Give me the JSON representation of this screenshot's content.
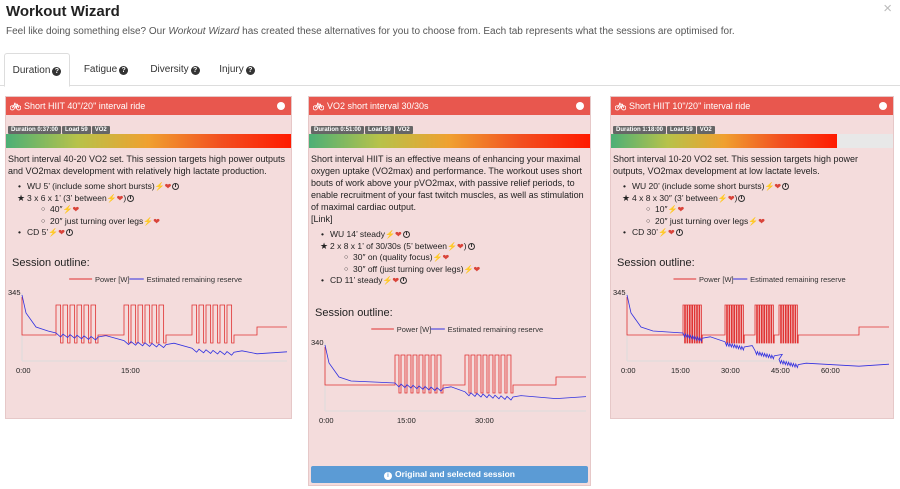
{
  "modal": {
    "title": "Workout Wizard",
    "close_label": "×",
    "subtitle_pre": "Feel like doing something else? Our ",
    "subtitle_em": "Workout Wizard",
    "subtitle_post": " has created these alternatives for you to choose from. Each tab represents what the sessions are optimised for."
  },
  "tabs": [
    {
      "label": "Duration"
    },
    {
      "label": "Fatigue"
    },
    {
      "label": "Diversity"
    },
    {
      "label": "Injury"
    }
  ],
  "cards": [
    {
      "title": "Short HIIT 40\"/20\" interval ride",
      "badges": [
        "Duration 0:37:00",
        "Load 59",
        "VO2"
      ],
      "bar_fill": 1.0,
      "desc": "Short interval 40-20 VO2 set. This session targets high power outputs and VO2max development with relatively high lactate production.",
      "steps": [
        {
          "text": "WU 5’ (include some short bursts)",
          "star": false,
          "icons": true
        },
        {
          "text": "3 x 6 x 1’ (3’ between",
          "star": true,
          "icons": true,
          "close": ")"
        },
        {
          "text": "40″",
          "sub": true,
          "icons": "bh"
        },
        {
          "text": "20″ just turning over legs",
          "sub": true,
          "icons": "bh"
        },
        {
          "text": "CD 5’",
          "star": false,
          "icons": true
        }
      ],
      "outline_title": "Session outline:",
      "legend_power": "Power [W]",
      "legend_reserve": "Estimated remaining reserve",
      "y_max_label": "345",
      "x_labels": [
        "0:00",
        "15:00"
      ]
    },
    {
      "title": "VO2 short interval 30/30s",
      "badges": [
        "Duration 0:51:00",
        "Load 59",
        "VO2"
      ],
      "bar_fill": 1.0,
      "desc": "Short interval HIIT is an effective means of enhancing your maximal oxygen uptake (VO2max) and performance. The workout uses short bouts of work above your pVO2max, with passive relief periods, to enable recruitment of your fast twitch muscles, as well as stimulation of maximal cardiac output.",
      "link": "[Link]",
      "steps": [
        {
          "text": "WU 14’ steady",
          "star": false,
          "icons": true
        },
        {
          "text": "2 x 8 x 1’ of 30/30s (5’ between",
          "star": true,
          "icons": true,
          "close": ")"
        },
        {
          "text": "30″ on (quality focus)",
          "sub": true,
          "icons": "bh"
        },
        {
          "text": "30″ off (just turning over legs)",
          "sub": true,
          "icons": "bh"
        },
        {
          "text": "CD 11’ steady",
          "star": false,
          "icons": true
        }
      ],
      "outline_title": "Session outline:",
      "legend_power": "Power [W]",
      "legend_reserve": "Estimated remaining reserve",
      "y_max_label": "340",
      "x_labels": [
        "0:00",
        "15:00",
        "30:00"
      ],
      "footer_label": "Original and selected session"
    },
    {
      "title": "Short HIIT 10\"/20\" interval ride",
      "badges": [
        "Duration 1:18:00",
        "Load 59",
        "VO2"
      ],
      "bar_fill": 0.8,
      "desc": "Short interval 10-20 VO2 set. This session targets high power outputs, VO2max development at low lactate levels.",
      "steps": [
        {
          "text": "WU 20’ (include some short bursts)",
          "star": false,
          "icons": true
        },
        {
          "text": "4 x 8 x 30″ (3’ between",
          "star": true,
          "icons": true,
          "close": ")"
        },
        {
          "text": "10″",
          "sub": true,
          "icons": "bh"
        },
        {
          "text": "20″ just turning over legs",
          "sub": true,
          "icons": "bh"
        },
        {
          "text": "CD 30’",
          "star": false,
          "icons": true
        }
      ],
      "outline_title": "Session outline:",
      "legend_power": "Power [W]",
      "legend_reserve": "Estimated remaining reserve",
      "y_max_label": "345",
      "x_labels": [
        "0:00",
        "15:00",
        "30:00",
        "45:00",
        "60:00"
      ]
    }
  ],
  "colors": {
    "header_red": "#e8574e",
    "card_bg": "#f4dcdc",
    "power_line": "#e03030",
    "reserve_line": "#3030e0",
    "button_blue": "#5b9bd5"
  }
}
